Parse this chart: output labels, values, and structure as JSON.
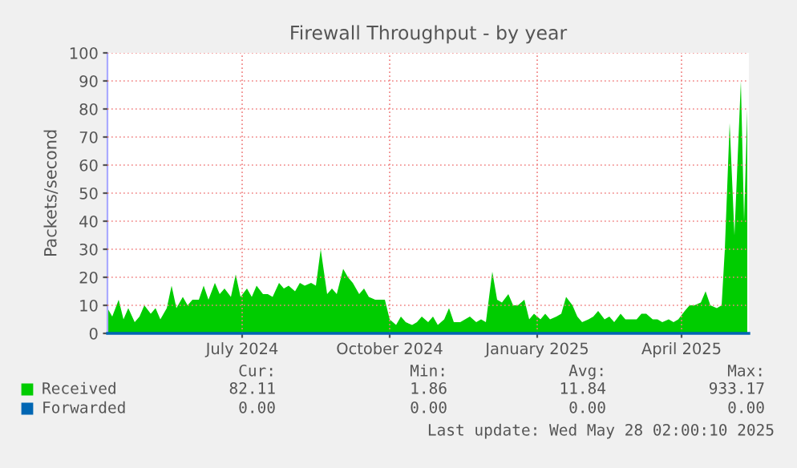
{
  "chart_data": {
    "type": "area",
    "title": "Firewall Throughput - by year",
    "ylabel": "Packets/second",
    "xlim": [
      "2024-04-23",
      "2025-05-28"
    ],
    "xticks": [
      {
        "value": "2024-07-16",
        "label": "July 2024"
      },
      {
        "value": "2024-10-16",
        "label": "October 2024"
      },
      {
        "value": "2025-01-16",
        "label": "January 2025"
      },
      {
        "value": "2025-04-16",
        "label": "April 2025"
      }
    ],
    "ylim": [
      0,
      100
    ],
    "yticks": [
      0,
      10,
      20,
      30,
      40,
      50,
      60,
      70,
      80,
      90,
      100
    ],
    "grid": true,
    "legend": "bottom",
    "series": [
      {
        "name": "Received",
        "color": "#00cc00",
        "x": [
          "2024-04-23",
          "2024-04-26",
          "2024-04-30",
          "2024-05-03",
          "2024-05-06",
          "2024-05-10",
          "2024-05-13",
          "2024-05-16",
          "2024-05-20",
          "2024-05-23",
          "2024-05-26",
          "2024-05-30",
          "2024-06-02",
          "2024-06-05",
          "2024-06-09",
          "2024-06-12",
          "2024-06-15",
          "2024-06-19",
          "2024-06-22",
          "2024-06-25",
          "2024-06-29",
          "2024-07-02",
          "2024-07-05",
          "2024-07-09",
          "2024-07-12",
          "2024-07-15",
          "2024-07-19",
          "2024-07-22",
          "2024-07-25",
          "2024-07-29",
          "2024-08-01",
          "2024-08-04",
          "2024-08-08",
          "2024-08-11",
          "2024-08-14",
          "2024-08-18",
          "2024-08-21",
          "2024-08-24",
          "2024-08-28",
          "2024-08-31",
          "2024-09-03",
          "2024-09-07",
          "2024-09-10",
          "2024-09-13",
          "2024-09-17",
          "2024-09-20",
          "2024-09-23",
          "2024-09-27",
          "2024-09-30",
          "2024-10-03",
          "2024-10-07",
          "2024-10-10",
          "2024-10-13",
          "2024-10-16",
          "2024-10-20",
          "2024-10-23",
          "2024-10-26",
          "2024-10-30",
          "2024-11-02",
          "2024-11-05",
          "2024-11-09",
          "2024-11-12",
          "2024-11-15",
          "2024-11-19",
          "2024-11-22",
          "2024-11-25",
          "2024-11-29",
          "2024-12-02",
          "2024-12-05",
          "2024-12-09",
          "2024-12-12",
          "2024-12-15",
          "2024-12-19",
          "2024-12-22",
          "2024-12-25",
          "2024-12-29",
          "2025-01-01",
          "2025-01-04",
          "2025-01-08",
          "2025-01-11",
          "2025-01-14",
          "2025-01-18",
          "2025-01-21",
          "2025-01-24",
          "2025-01-28",
          "2025-01-31",
          "2025-02-03",
          "2025-02-07",
          "2025-02-10",
          "2025-02-13",
          "2025-02-17",
          "2025-02-20",
          "2025-02-23",
          "2025-02-27",
          "2025-03-02",
          "2025-03-05",
          "2025-03-09",
          "2025-03-12",
          "2025-03-15",
          "2025-03-19",
          "2025-03-22",
          "2025-03-25",
          "2025-03-29",
          "2025-04-01",
          "2025-04-04",
          "2025-04-08",
          "2025-04-11",
          "2025-04-14",
          "2025-04-18",
          "2025-04-21",
          "2025-04-24",
          "2025-04-28",
          "2025-05-01",
          "2025-05-04",
          "2025-05-08",
          "2025-05-11",
          "2025-05-13",
          "2025-05-16",
          "2025-05-19",
          "2025-05-23",
          "2025-05-25",
          "2025-05-27"
        ],
        "values": [
          9,
          6,
          12,
          5,
          9,
          4,
          6,
          10,
          7,
          9,
          5,
          9,
          17,
          9,
          13,
          10,
          12,
          12,
          17,
          12,
          18,
          14,
          16,
          13,
          21,
          13,
          16,
          13,
          17,
          14,
          14,
          13,
          18,
          16,
          17,
          15,
          18,
          17,
          18,
          17,
          30,
          14,
          16,
          14,
          23,
          20,
          18,
          14,
          16,
          13,
          12,
          12,
          12,
          5,
          3,
          6,
          4,
          3,
          4,
          6,
          4,
          6,
          3,
          5,
          9,
          4,
          4,
          5,
          6,
          4,
          5,
          4,
          22,
          12,
          11,
          14,
          10,
          10,
          12,
          5,
          7,
          5,
          7,
          5,
          6,
          7,
          13,
          10,
          6,
          4,
          5,
          6,
          8,
          5,
          6,
          4,
          7,
          5,
          5,
          5,
          7,
          7,
          5,
          5,
          4,
          5,
          4,
          5,
          8,
          10,
          10,
          11,
          15,
          10,
          9,
          10,
          30,
          75,
          35,
          90,
          40,
          80
        ]
      },
      {
        "name": "Forwarded",
        "type": "line",
        "color": "#0066b3",
        "x": [
          "2024-04-23",
          "2025-05-28"
        ],
        "values": [
          0,
          0
        ]
      }
    ],
    "annotations": [
      "Cur:",
      "Min:",
      "Avg:",
      "Max:",
      "82.11",
      "1.86",
      "11.84",
      "933.17",
      "0.00",
      "0.00",
      "0.00",
      "0.00",
      "Last update: Wed May 28 02:00:10 2025"
    ]
  }
}
